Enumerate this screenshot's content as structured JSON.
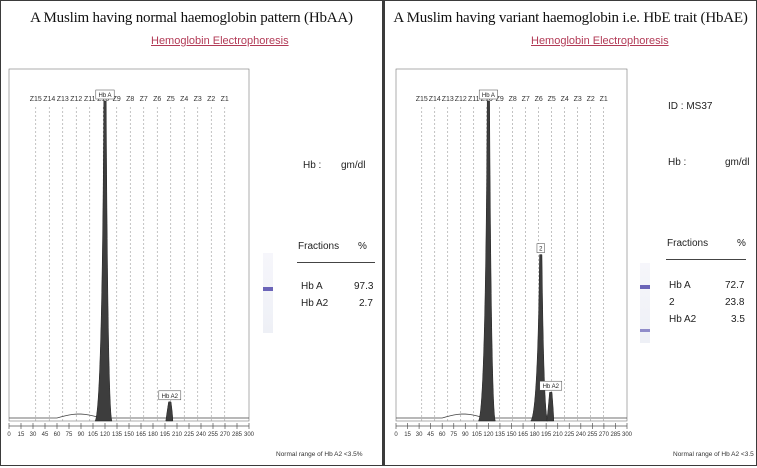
{
  "colors": {
    "peak_fill": "#3d3d3d",
    "band": "#6b64b8",
    "subtitle": "#b23a56",
    "gridline": "#9a9a9a"
  },
  "left": {
    "title": "A Muslim having normal haemoglobin pattern (HbAA)",
    "subtitle": "Hemoglobin Electrophoresis",
    "hb_label": "Hb :",
    "hb_unit": "gm/dl",
    "fractions_header": "Fractions",
    "percent_header": "%",
    "fractions": [
      {
        "name": "Hb A",
        "value": "97.3"
      },
      {
        "name": "Hb A2",
        "value": "2.7"
      }
    ],
    "footnote": "Normal range of Hb A2 <3.5%"
  },
  "right": {
    "title": "A Muslim having variant haemoglobin i.e. HbE trait (HbAE)",
    "subtitle": "Hemoglobin Electrophoresis",
    "id_text": "ID : MS37",
    "hb_label": "Hb :",
    "hb_unit": "gm/dl",
    "fractions_header": "Fractions",
    "percent_header": "%",
    "fractions": [
      {
        "name": "Hb A",
        "value": "72.7"
      },
      {
        "name": "2",
        "value": "23.8"
      },
      {
        "name": "Hb A2",
        "value": "3.5"
      }
    ],
    "footnote": "Normal range of Hb A2 <3.5"
  },
  "chart_data": [
    {
      "type": "area",
      "title": "A Muslim having normal haemoglobin pattern (HbAA)",
      "subtitle": "Hemoglobin Electrophoresis",
      "xlim": [
        0,
        300
      ],
      "x_ticks": [
        0,
        15,
        30,
        45,
        60,
        75,
        90,
        105,
        120,
        135,
        150,
        165,
        180,
        195,
        210,
        225,
        240,
        255,
        270,
        285,
        300
      ],
      "zone_labels": [
        "Z15",
        "Z14",
        "Z13",
        "Z12",
        "Z11",
        "Z10",
        "Z9",
        "Z8",
        "Z7",
        "Z6",
        "Z5",
        "Z4",
        "Z3",
        "Z2",
        "Z1"
      ],
      "peaks": [
        {
          "label": "Hb A",
          "x": 120,
          "height": 1.0
        },
        {
          "label": "Hb A2",
          "x": 201,
          "height": 0.06
        }
      ]
    },
    {
      "type": "area",
      "title": "A Muslim having variant haemoglobin i.e. HbE trait (HbAE)",
      "subtitle": "Hemoglobin Electrophoresis",
      "xlim": [
        0,
        300
      ],
      "x_ticks": [
        0,
        15,
        30,
        45,
        60,
        75,
        90,
        105,
        120,
        135,
        150,
        165,
        180,
        195,
        210,
        225,
        240,
        255,
        270,
        285,
        300
      ],
      "zone_labels": [
        "Z15",
        "Z14",
        "Z13",
        "Z12",
        "Z11",
        "Z10",
        "Z9",
        "Z8",
        "Z7",
        "Z6",
        "Z5",
        "Z4",
        "Z3",
        "Z2",
        "Z1"
      ],
      "peaks": [
        {
          "label": "Hb A",
          "x": 120,
          "height": 1.0
        },
        {
          "label": "2",
          "x": 188,
          "height": 0.52
        },
        {
          "label": "Hb A2",
          "x": 201,
          "height": 0.09
        }
      ]
    }
  ]
}
